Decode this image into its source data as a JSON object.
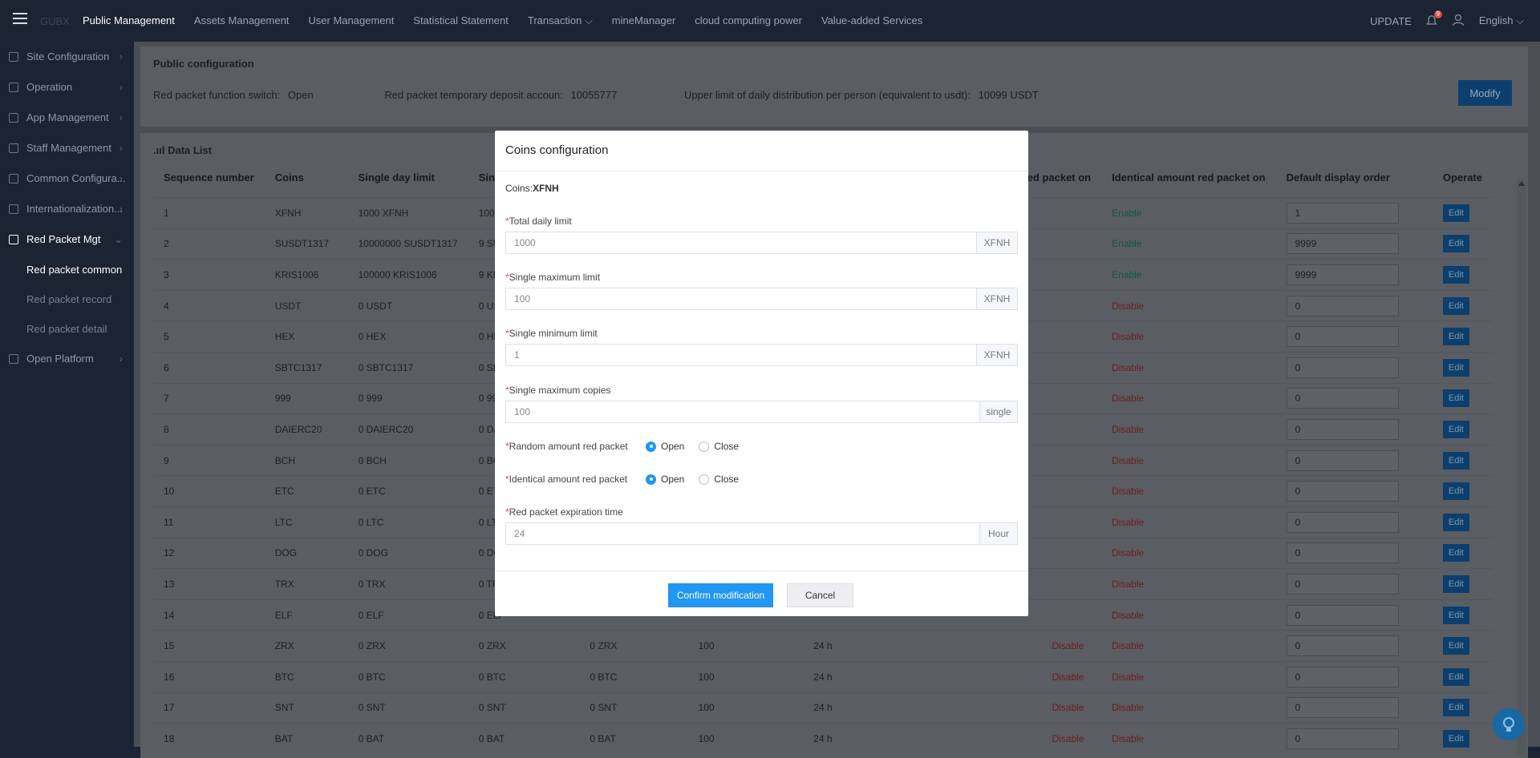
{
  "topnav": {
    "logo_text": "GUBX",
    "items": [
      "Public Management",
      "Assets Management",
      "User Management",
      "Statistical Statement",
      "Transaction",
      "mineManager",
      "cloud computing power",
      "Value-added Services"
    ],
    "active_index": 0,
    "update_label": "UPDATE",
    "bell_count": "9",
    "language": "English"
  },
  "sidebar": {
    "items": [
      "Site Configuration",
      "Operation",
      "App Management",
      "Staff Management",
      "Common Configura...",
      "Internationalization...",
      "Red Packet Mgt",
      "Open Platform"
    ],
    "open_index": 6,
    "subitems": [
      "Red packet common",
      "Red packet record",
      "Red packet detail"
    ],
    "active_sub": 0
  },
  "public_config": {
    "title": "Public configuration",
    "switch_label": "Red packet function switch:",
    "switch_value": "Open",
    "deposit_label": "Red packet temporary deposit accoun:",
    "deposit_value": "10055777",
    "upper_label": "Upper limit of daily distribution per person (equivalent to usdt):",
    "upper_value": "10099 USDT",
    "modify_label": "Modify"
  },
  "data_list": {
    "title": "Data List",
    "columns": [
      "Sequence number",
      "Coins",
      "Single day limit",
      "Single m",
      "",
      "",
      "",
      "Random amount red packet on",
      "Identical amount red packet on",
      "Default display order",
      "Operate"
    ],
    "rows": [
      [
        "1",
        "XFNH",
        "1000 XFNH",
        "100 XFN",
        "",
        "",
        "",
        "",
        "Enable",
        "1"
      ],
      [
        "2",
        "SUSDT1317",
        "10000000 SUSDT1317",
        "9 SUSDT",
        "",
        "",
        "",
        "",
        "Enable",
        "9999"
      ],
      [
        "3",
        "KRIS1006",
        "100000 KRIS1006",
        "9 KRIS10",
        "",
        "",
        "",
        "",
        "Enable",
        "9999"
      ],
      [
        "4",
        "USDT",
        "0 USDT",
        "0 USDT",
        "",
        "",
        "",
        "",
        "Disable",
        "0"
      ],
      [
        "5",
        "HEX",
        "0 HEX",
        "0 HEX",
        "",
        "",
        "",
        "",
        "Disable",
        "0"
      ],
      [
        "6",
        "SBTC1317",
        "0 SBTC1317",
        "0 SBTC13",
        "",
        "",
        "",
        "",
        "Disable",
        "0"
      ],
      [
        "7",
        "999",
        "0 999",
        "0 999",
        "",
        "",
        "",
        "",
        "Disable",
        "0"
      ],
      [
        "8",
        "DAIERC20",
        "0 DAIERC20",
        "0 DAIER",
        "",
        "",
        "",
        "",
        "Disable",
        "0"
      ],
      [
        "9",
        "BCH",
        "0 BCH",
        "0 BCH",
        "",
        "",
        "",
        "",
        "Disable",
        "0"
      ],
      [
        "10",
        "ETC",
        "0 ETC",
        "0 ETC",
        "",
        "",
        "",
        "",
        "Disable",
        "0"
      ],
      [
        "11",
        "LTC",
        "0 LTC",
        "0 LTC",
        "",
        "",
        "",
        "",
        "Disable",
        "0"
      ],
      [
        "12",
        "DOG",
        "0 DOG",
        "0 DOG",
        "",
        "",
        "",
        "",
        "Disable",
        "0"
      ],
      [
        "13",
        "TRX",
        "0 TRX",
        "0 TRX",
        "",
        "",
        "",
        "",
        "Disable",
        "0"
      ],
      [
        "14",
        "ELF",
        "0 ELF",
        "0 ELF",
        "",
        "",
        "",
        "",
        "Disable",
        "0"
      ],
      [
        "15",
        "ZRX",
        "0 ZRX",
        "0 ZRX",
        "0 ZRX",
        "100",
        "24 h",
        "Disable",
        "Disable",
        "0"
      ],
      [
        "16",
        "BTC",
        "0 BTC",
        "0 BTC",
        "0 BTC",
        "100",
        "24 h",
        "Disable",
        "Disable",
        "0"
      ],
      [
        "17",
        "SNT",
        "0 SNT",
        "0 SNT",
        "0 SNT",
        "100",
        "24 h",
        "Disable",
        "Disable",
        "0"
      ],
      [
        "18",
        "BAT",
        "0 BAT",
        "0 BAT",
        "0 BAT",
        "100",
        "24 h",
        "Disable",
        "Disable",
        "0"
      ]
    ],
    "edit_label": "Edit"
  },
  "modal": {
    "title": "Coins configuration",
    "coin_prefix": "Coins:",
    "coin": "XFNH",
    "total_label": "Total daily limit",
    "total_value": "1000",
    "total_suffix": "XFNH",
    "max_label": "Single maximum limit",
    "max_value": "100",
    "max_suffix": "XFNH",
    "min_label": "Single minimum limit",
    "min_value": "1",
    "min_suffix": "XFNH",
    "copies_label": "Single maximum copies",
    "copies_value": "100",
    "copies_suffix": "single",
    "random_label": "Random amount red packet",
    "identical_label": "Identical amount red packet",
    "open_label": "Open",
    "close_label": "Close",
    "expire_label": "Red packet expiration time",
    "expire_value": "24",
    "expire_suffix": "Hour",
    "confirm_label": "Confirm modification",
    "cancel_label": "Cancel"
  }
}
